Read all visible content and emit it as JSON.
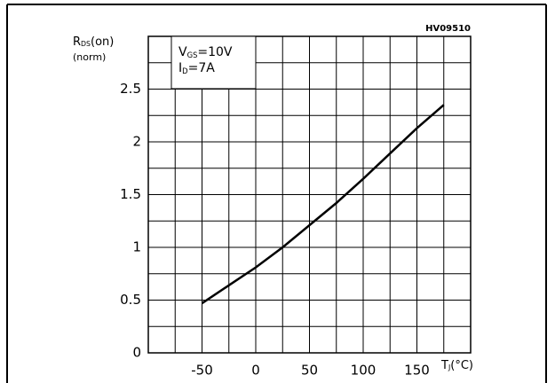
{
  "chart_data": {
    "type": "line",
    "code": "HV09510",
    "y_label": {
      "symbol": "R",
      "sub": "DS",
      "text": "(on)"
    },
    "y_unit": "(norm)",
    "x_label": {
      "symbol": "T",
      "sub": "J",
      "text": "(°C)"
    },
    "conditions": [
      {
        "symbol": "V",
        "sub": "GS",
        "text": "=10V"
      },
      {
        "symbol": "I",
        "sub": "D",
        "text": "=7A"
      }
    ],
    "x": [
      -50,
      -25,
      0,
      25,
      50,
      75,
      100,
      125,
      150,
      175
    ],
    "series": [
      {
        "color": "#000000",
        "values": [
          0.47,
          0.64,
          0.81,
          1.0,
          1.21,
          1.42,
          1.65,
          1.89,
          2.13,
          2.35
        ]
      }
    ],
    "xlim": [
      -100,
      200
    ],
    "xticks": [
      -50,
      0,
      50,
      100,
      150
    ],
    "xminor": [
      -75,
      -25,
      25,
      75,
      125,
      175
    ],
    "ylim": [
      0,
      3
    ],
    "yticks": [
      0,
      0.5,
      1,
      1.5,
      2,
      2.5
    ],
    "yminor": [
      0.25,
      0.75,
      1.25,
      1.75,
      2.25,
      2.75
    ],
    "grid": true
  }
}
